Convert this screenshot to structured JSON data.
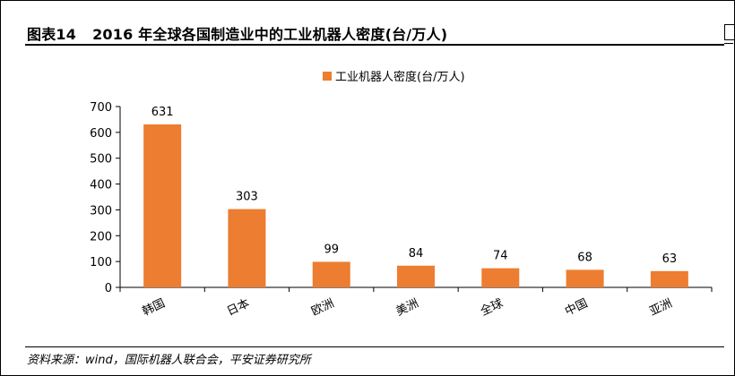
{
  "header": {
    "figure_number": "图表14",
    "title": "2016 年全球各国制造业中的工业机器人密度(台/万人)"
  },
  "footer": {
    "source": "资料来源：wind，国际机器人联合会，平安证券研究所"
  },
  "chart_data": {
    "type": "bar",
    "categories": [
      "韩国",
      "日本",
      "欧洲",
      "美洲",
      "全球",
      "中国",
      "亚洲"
    ],
    "series": [
      {
        "name": "工业机器人密度(台/万人)",
        "values": [
          631,
          303,
          99,
          84,
          74,
          68,
          63
        ],
        "color": "#ED7D31"
      }
    ],
    "data_labels": [
      "631",
      "303",
      "99",
      "84",
      "74",
      "68",
      "63"
    ],
    "ylim": [
      0,
      700
    ],
    "yticks": [
      0,
      100,
      200,
      300,
      400,
      500,
      600,
      700
    ],
    "grid": false,
    "legend_position": "top-center",
    "xlabel": "",
    "ylabel": ""
  }
}
